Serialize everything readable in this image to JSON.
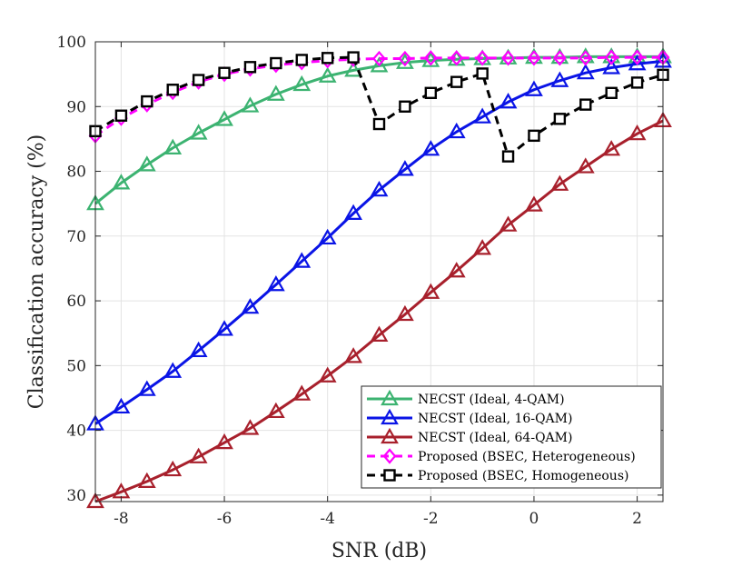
{
  "chart_data": {
    "type": "line",
    "title": "",
    "xlabel": "SNR (dB)",
    "ylabel": "Classification accuracy (%)",
    "xlim": [
      -8.5,
      2.5
    ],
    "ylim": [
      29,
      100
    ],
    "xticks": [
      -8,
      -6,
      -4,
      -2,
      0,
      2
    ],
    "xtick_labels": [
      "-8",
      "-6",
      "-4",
      "-2",
      "0",
      "2"
    ],
    "yticks": [
      30,
      40,
      50,
      60,
      70,
      80,
      90,
      100
    ],
    "ytick_labels": [
      "30",
      "40",
      "50",
      "60",
      "70",
      "80",
      "90",
      "100"
    ],
    "grid": true,
    "legend_position": "bottom-right",
    "x": [
      -8.5,
      -8,
      -7.5,
      -7,
      -6.5,
      -6,
      -5.5,
      -5,
      -4.5,
      -4,
      -3.5,
      -3,
      -2.5,
      -2,
      -1.5,
      -1,
      -0.5,
      0,
      0.5,
      1,
      1.5,
      2,
      2.5
    ],
    "series": [
      {
        "name": "NECST (Ideal, 4-QAM)",
        "color": "#3cb371",
        "marker": "triangle",
        "dashed": false,
        "values": [
          75.0,
          78.2,
          81.0,
          83.6,
          85.9,
          88.0,
          90.1,
          91.9,
          93.4,
          94.7,
          95.6,
          96.3,
          96.8,
          97.1,
          97.3,
          97.4,
          97.5,
          97.6,
          97.6,
          97.7,
          97.7,
          97.7,
          97.7
        ]
      },
      {
        "name": "NECST (Ideal, 16-QAM)",
        "color": "#0a14e6",
        "marker": "triangle",
        "dashed": false,
        "values": [
          41.0,
          43.6,
          46.3,
          49.1,
          52.3,
          55.6,
          59.0,
          62.5,
          66.1,
          69.7,
          73.5,
          77.1,
          80.3,
          83.4,
          86.1,
          88.4,
          90.7,
          92.6,
          94.0,
          95.2,
          96.0,
          96.6,
          97.0
        ]
      },
      {
        "name": "NECST (Ideal, 64-QAM)",
        "color": "#a8202c",
        "marker": "triangle",
        "dashed": false,
        "values": [
          29.0,
          30.5,
          32.1,
          33.9,
          35.9,
          38.1,
          40.3,
          42.9,
          45.6,
          48.4,
          51.4,
          54.7,
          57.9,
          61.3,
          64.6,
          68.1,
          71.7,
          74.8,
          78.0,
          80.7,
          83.4,
          85.8,
          87.8
        ]
      },
      {
        "name": "Proposed (BSEC, Heterogeneous)",
        "color": "#ff00ff",
        "marker": "diamond",
        "dashed": true,
        "values": [
          85.5,
          88.2,
          90.3,
          92.2,
          93.8,
          95.0,
          95.8,
          96.4,
          96.8,
          97.1,
          97.3,
          97.4,
          97.4,
          97.5,
          97.5,
          97.5,
          97.5,
          97.5,
          97.5,
          97.5,
          97.6,
          97.6,
          97.6
        ]
      },
      {
        "name": "Proposed (BSEC, Homogeneous)",
        "color": "#000000",
        "marker": "square",
        "dashed": true,
        "values": [
          86.2,
          88.6,
          90.8,
          92.6,
          94.1,
          95.2,
          96.1,
          96.7,
          97.2,
          97.5,
          97.6,
          87.3,
          90.0,
          92.1,
          93.8,
          95.1,
          82.3,
          85.5,
          88.1,
          90.3,
          92.1,
          93.7,
          94.9
        ]
      }
    ]
  }
}
